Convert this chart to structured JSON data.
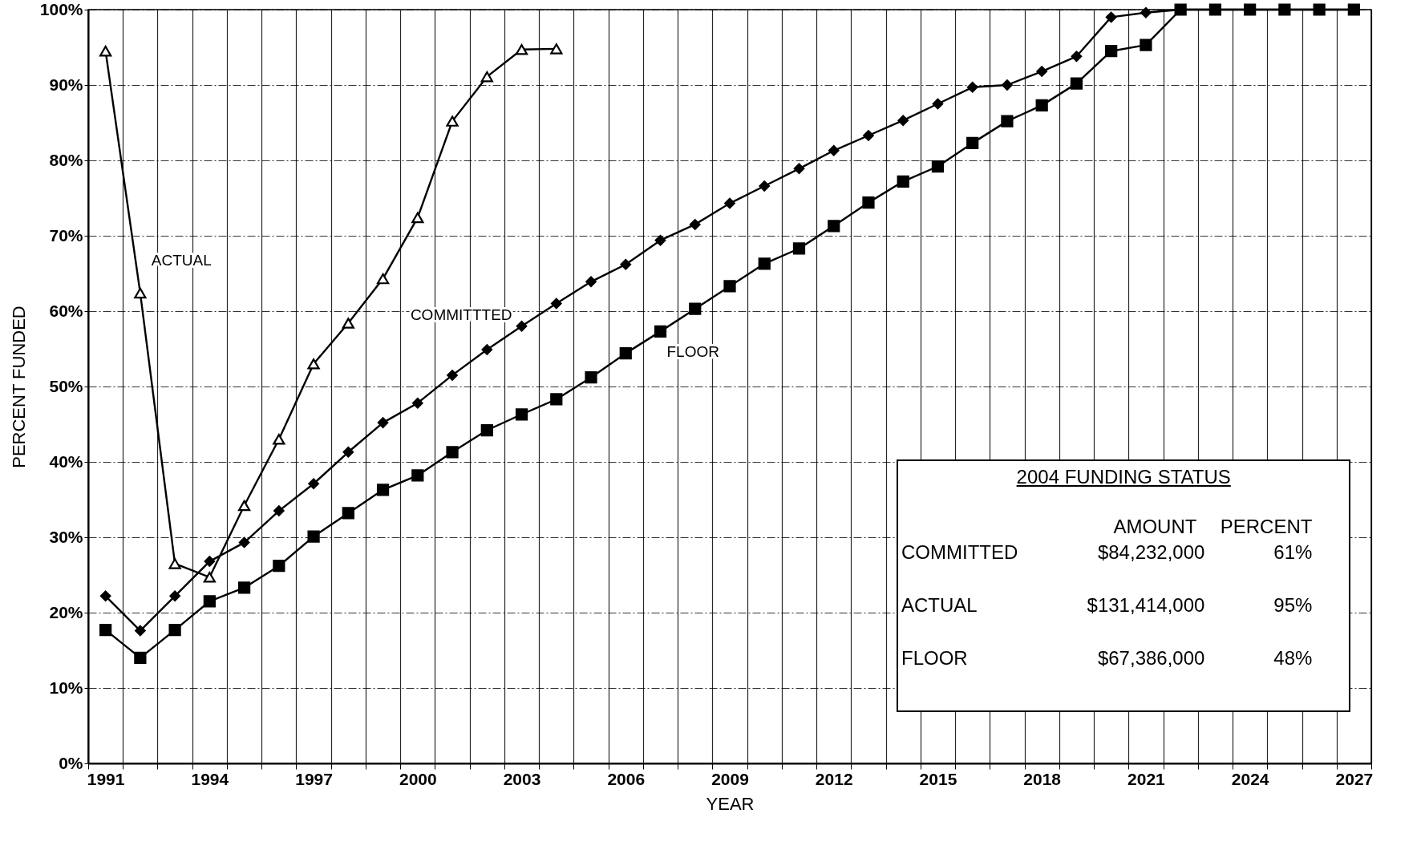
{
  "chart_data": {
    "type": "line",
    "xlabel": "YEAR",
    "ylabel": "PERCENT FUNDED",
    "categories": [
      "1991",
      null,
      null,
      "1994",
      null,
      null,
      "1997",
      null,
      null,
      "2000",
      null,
      null,
      "2003",
      null,
      null,
      "2006",
      null,
      null,
      "2009",
      null,
      null,
      "2012",
      null,
      null,
      "2015",
      null,
      null,
      "2018",
      null,
      null,
      "2021",
      null,
      null,
      "2024",
      null,
      null,
      "2027"
    ],
    "series": [
      {
        "name": "ACTUAL",
        "color": "#000000",
        "marker": "triangle",
        "values": [
          94.5,
          62.4,
          26.5,
          24.7,
          34.2,
          43,
          53,
          58.4,
          64.3,
          72.4,
          85.2,
          91.1,
          94.7,
          94.8,
          null,
          null,
          null,
          null,
          null,
          null,
          null,
          null,
          null,
          null,
          null,
          null,
          null,
          null,
          null,
          null,
          null,
          null,
          null,
          null,
          null,
          null,
          null
        ]
      },
      {
        "name": "COMMITTTED",
        "color": "#000000",
        "marker": "diamond",
        "values": [
          22.2,
          17.6,
          22.2,
          26.8,
          29.3,
          33.5,
          37.1,
          41.3,
          45.2,
          47.8,
          51.5,
          54.9,
          58,
          61,
          63.9,
          66.2,
          69.4,
          71.5,
          74.3,
          76.6,
          78.9,
          81.3,
          83.3,
          85.3,
          87.5,
          89.7,
          90,
          91.8,
          93.8,
          99,
          99.6,
          100,
          100,
          100,
          100,
          100,
          100
        ]
      },
      {
        "name": "FLOOR",
        "color": "#000000",
        "marker": "square",
        "values": [
          17.7,
          14,
          17.7,
          21.5,
          23.3,
          26.2,
          30.1,
          33.2,
          36.3,
          38.2,
          41.3,
          44.2,
          46.3,
          48.3,
          51.2,
          54.4,
          57.3,
          60.3,
          63.3,
          66.3,
          68.3,
          71.3,
          74.4,
          77.2,
          79.2,
          82.3,
          85.2,
          87.3,
          90.2,
          94.5,
          95.3,
          100,
          100,
          100,
          100,
          100,
          100
        ]
      }
    ],
    "ylim": [
      0,
      100
    ],
    "yticks": [
      {
        "value": 0,
        "label": "0%"
      },
      {
        "value": 10,
        "label": "10%"
      },
      {
        "value": 20,
        "label": "20%"
      },
      {
        "value": 30,
        "label": "30%"
      },
      {
        "value": 40,
        "label": "40%"
      },
      {
        "value": 50,
        "label": "50%"
      },
      {
        "value": 60,
        "label": "60%"
      },
      {
        "value": 70,
        "label": "70%"
      },
      {
        "value": 80,
        "label": "80%"
      },
      {
        "value": 90,
        "label": "90%"
      },
      {
        "value": 100,
        "label": "100%"
      }
    ],
    "grid": true,
    "line_style": "solid",
    "annotations": [
      "2004 FUNDING STATUS",
      "AMOUNT",
      "PERCENT",
      "COMMITTED",
      "$84,232,000",
      "61%",
      "ACTUAL",
      "$131,414,000",
      "95%",
      "FLOOR",
      "$67,386,000",
      "48%"
    ]
  }
}
